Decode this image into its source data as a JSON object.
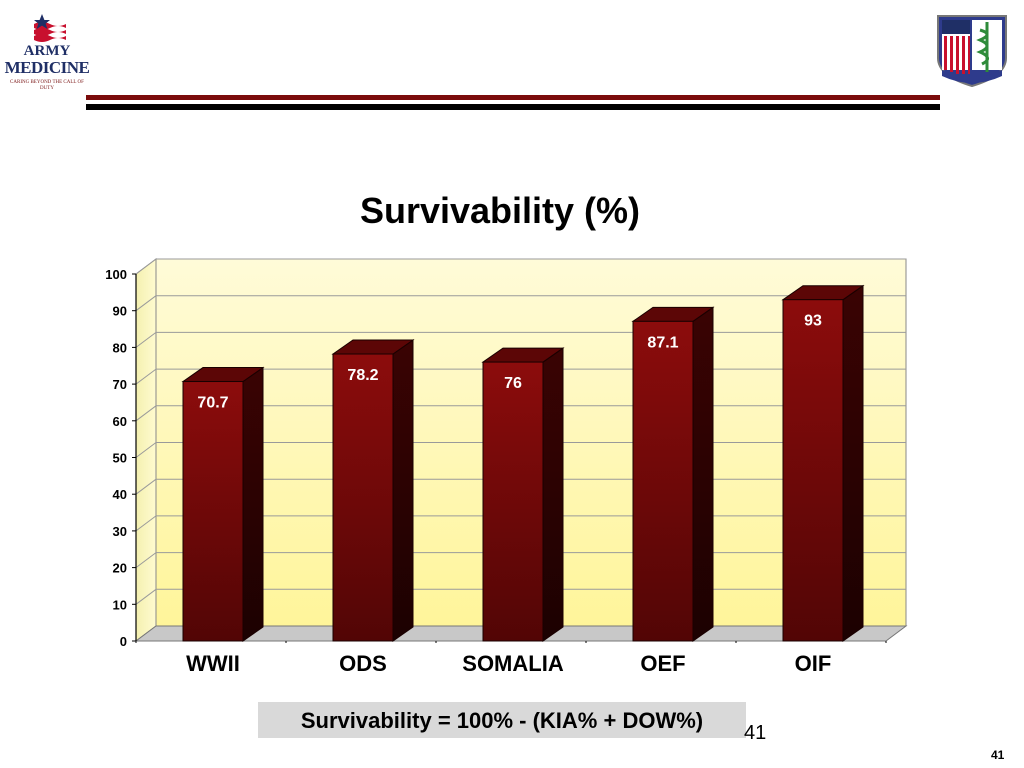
{
  "header": {
    "logo_left": {
      "line1": "ARMY",
      "line2": "MEDICINE",
      "tagline": "CARING BEYOND THE CALL OF DUTY"
    }
  },
  "chart_data": {
    "type": "bar",
    "title": "Survivability (%)",
    "categories": [
      "WWII",
      "ODS",
      "SOMALIA",
      "OEF",
      "OIF"
    ],
    "values": [
      70.7,
      78.2,
      76,
      87.1,
      93
    ],
    "value_labels": [
      "70.7",
      "78.2",
      "76",
      "87.1",
      "93"
    ],
    "ylim": [
      0,
      100
    ],
    "yticks": [
      0,
      10,
      20,
      30,
      40,
      50,
      60,
      70,
      80,
      90,
      100
    ],
    "grid": true,
    "xlabel": "",
    "ylabel": "",
    "colors": {
      "bar": "#7a0a0a",
      "bar_side": "#3a0303",
      "bar_top": "#5c0606",
      "plot_back": "#fffbc0",
      "floor": "#c8c8c8",
      "value_label": "#ffffff"
    }
  },
  "formula": "Survivability = 100% - (KIA% + DOW%)",
  "slide_number": "41",
  "slide_number_small": "41"
}
